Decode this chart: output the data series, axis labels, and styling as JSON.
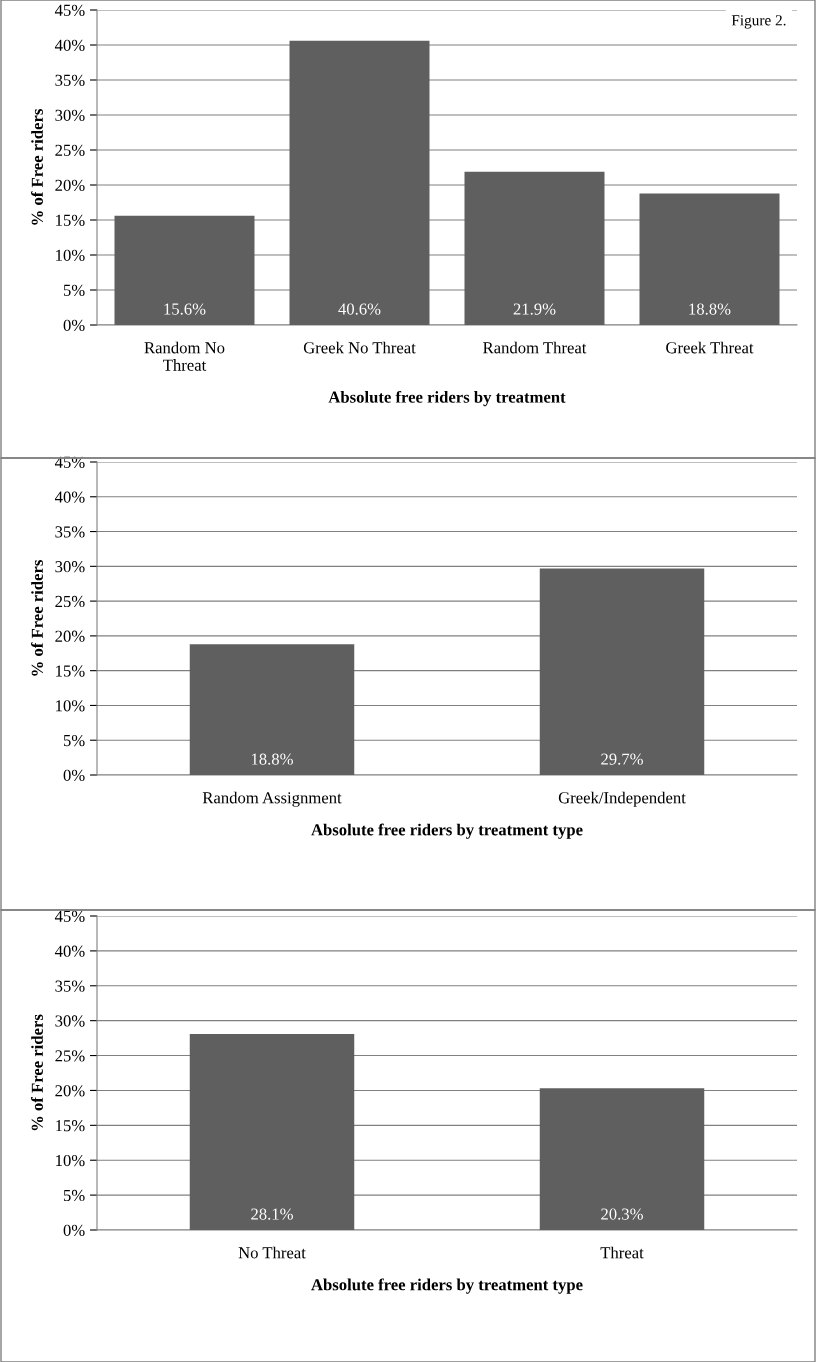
{
  "chart_data": [
    {
      "type": "bar",
      "xlabel": "Absolute free riders by treatment",
      "ylabel": "% of Free riders",
      "annotations": [
        "Figure 2."
      ],
      "categories": [
        "Random No\nThreat",
        "Greek No Threat",
        "Random Threat",
        "Greek Threat"
      ],
      "values": [
        15.6,
        40.6,
        21.9,
        18.8
      ],
      "value_labels": [
        "15.6%",
        "40.6%",
        "21.9%",
        "18.8%"
      ],
      "color": "#5f5f5f",
      "ylim": [
        0,
        45
      ],
      "yticks": [
        {
          "value": 0,
          "label": "0%"
        },
        {
          "value": 5,
          "label": "5%"
        },
        {
          "value": 10,
          "label": "10%"
        },
        {
          "value": 15,
          "label": "15%"
        },
        {
          "value": 20,
          "label": "20%"
        },
        {
          "value": 25,
          "label": "25%"
        },
        {
          "value": 30,
          "label": "30%"
        },
        {
          "value": 35,
          "label": "35%"
        },
        {
          "value": 40,
          "label": "40%"
        },
        {
          "value": 45,
          "label": "45%"
        }
      ],
      "grid": "y"
    },
    {
      "type": "bar",
      "xlabel": "Absolute free riders by treatment type",
      "ylabel": "% of Free riders",
      "categories": [
        "Random Assignment",
        "Greek/Independent"
      ],
      "values": [
        18.8,
        29.7
      ],
      "value_labels": [
        "18.8%",
        "29.7%"
      ],
      "color": "#5f5f5f",
      "ylim": [
        0,
        45
      ],
      "yticks": [
        {
          "value": 0,
          "label": "0%"
        },
        {
          "value": 5,
          "label": "5%"
        },
        {
          "value": 10,
          "label": "10%"
        },
        {
          "value": 15,
          "label": "15%"
        },
        {
          "value": 20,
          "label": "20%"
        },
        {
          "value": 25,
          "label": "25%"
        },
        {
          "value": 30,
          "label": "30%"
        },
        {
          "value": 35,
          "label": "35%"
        },
        {
          "value": 40,
          "label": "40%"
        },
        {
          "value": 45,
          "label": "45%"
        }
      ],
      "grid": "y"
    },
    {
      "type": "bar",
      "xlabel": "Absolute free riders by treatment type",
      "ylabel": "% of Free riders",
      "categories": [
        "No Threat",
        "Threat"
      ],
      "values": [
        28.1,
        20.3
      ],
      "value_labels": [
        "28.1%",
        "20.3%"
      ],
      "color": "#5f5f5f",
      "ylim": [
        0,
        45
      ],
      "yticks": [
        {
          "value": 0,
          "label": "0%"
        },
        {
          "value": 5,
          "label": "5%"
        },
        {
          "value": 10,
          "label": "10%"
        },
        {
          "value": 15,
          "label": "15%"
        },
        {
          "value": 20,
          "label": "20%"
        },
        {
          "value": 25,
          "label": "25%"
        },
        {
          "value": 30,
          "label": "30%"
        },
        {
          "value": 35,
          "label": "35%"
        },
        {
          "value": 40,
          "label": "40%"
        },
        {
          "value": 45,
          "label": "45%"
        }
      ],
      "grid": "y"
    }
  ]
}
